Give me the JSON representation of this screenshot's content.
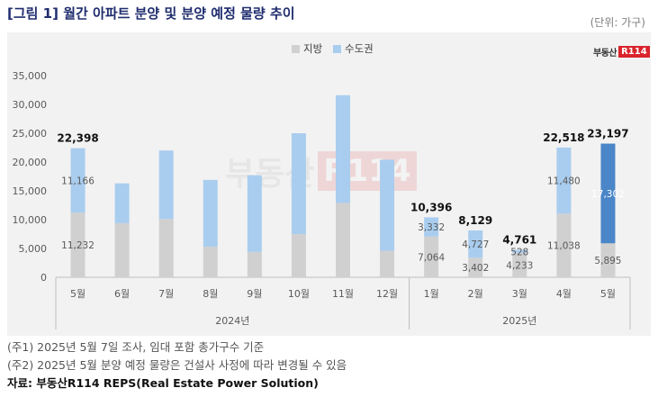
{
  "header": {
    "title": "[그림 1] 월간 아파트 분양 및 분양 예정 물량 추이",
    "unit": "(단위: 가구)"
  },
  "logo": {
    "text": "부동산",
    "box": "R114"
  },
  "notes": [
    "(주1) 2025년 5월 7일 조사, 임대 포함 총가구수 기준",
    "(주2) 2025년 5월 분양 예정 물량은 건설사 사정에 따라 변경될 수 있음"
  ],
  "source": "자료: 부동산R114 REPS(Real Estate Power Solution)",
  "colors": {
    "local": "#d0d0d0",
    "capital": "#a9cdef",
    "capital_forecast": "#4a86c8",
    "axis_text": "#595959",
    "grid": "#d9d9d9"
  },
  "chart_data": {
    "type": "bar",
    "stacked": true,
    "ylim": [
      0,
      35000
    ],
    "yticks": [
      0,
      5000,
      10000,
      15000,
      20000,
      25000,
      30000,
      35000
    ],
    "ytick_labels": [
      "0",
      "5,000",
      "10,000",
      "15,000",
      "20,000",
      "25,000",
      "30,000",
      "35,000"
    ],
    "legend_position": "top-center",
    "grid": true,
    "categories": [
      "5월",
      "6월",
      "7월",
      "8월",
      "9월",
      "10월",
      "11월",
      "12월",
      "1월",
      "2월",
      "3월",
      "4월",
      "5월"
    ],
    "groups": [
      {
        "label": "2024년",
        "from": 0,
        "to": 7
      },
      {
        "label": "2025년",
        "from": 8,
        "to": 12
      }
    ],
    "series": [
      {
        "name": "지방",
        "values": [
          11232,
          9400,
          10100,
          5300,
          4400,
          7500,
          12900,
          4600,
          7064,
          3402,
          4233,
          11038,
          5895
        ]
      },
      {
        "name": "수도권",
        "values": [
          11166,
          6900,
          11900,
          11600,
          13300,
          17500,
          18700,
          15800,
          3332,
          4727,
          528,
          11480,
          17302
        ]
      }
    ],
    "segment_labels": {
      "지방": [
        "11,232",
        "",
        "",
        "",
        "",
        "",
        "",
        "",
        "7,064",
        "3,402",
        "4,233",
        "11,038",
        "5,895"
      ],
      "수도권": [
        "11,166",
        "",
        "",
        "",
        "",
        "",
        "",
        "",
        "3,332",
        "4,727",
        "528",
        "11,480",
        "17,302"
      ]
    },
    "total_labels": [
      "22,398",
      "",
      "",
      "",
      "",
      "",
      "",
      "",
      "10,396",
      "8,129",
      "4,761",
      "22,518",
      "23,197"
    ],
    "forecast_index": 12
  }
}
